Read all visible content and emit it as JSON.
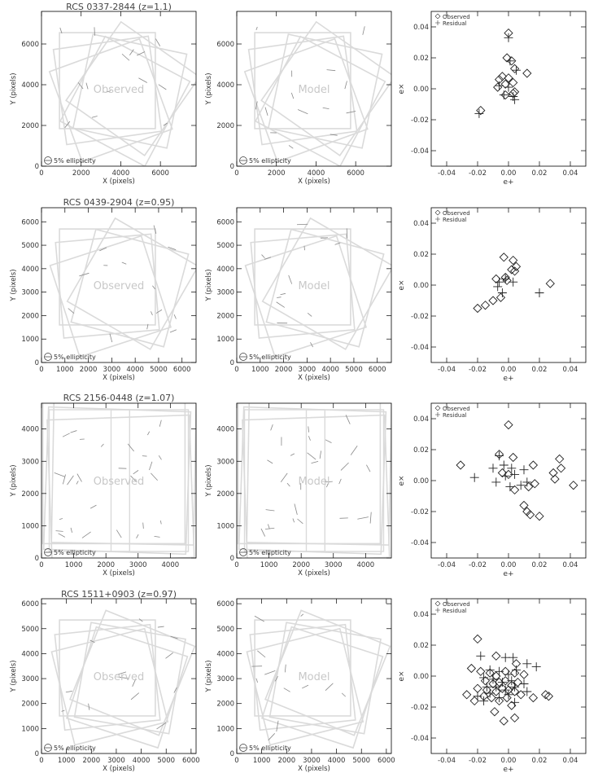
{
  "figure": {
    "panel_label_observed": "Observed",
    "panel_label_model": "Model",
    "ellipticity_key": "5% ellipticity",
    "map_xlabel": "X (pixels)",
    "map_ylabel": "Y (pixels)",
    "scatter_xlabel": "e+",
    "scatter_ylabel": "e×",
    "legend_observed": "Observed",
    "legend_residual": "Residual"
  },
  "chart_data": [
    {
      "type": "scatter",
      "title": "RCS 0337-2844 (z=1.1)",
      "map_xlim": [
        0,
        7800
      ],
      "map_ylim": [
        0,
        7600
      ],
      "map_xticks": [
        0,
        2000,
        4000,
        6000
      ],
      "map_yticks": [
        0,
        2000,
        4000,
        6000
      ],
      "scatter_xlim": [
        -0.05,
        0.05
      ],
      "scatter_ylim": [
        -0.05,
        0.05
      ],
      "scatter_ticks": [
        -0.04,
        -0.02,
        0.0,
        0.02,
        0.04
      ],
      "tick_labels": [
        "-0.04",
        "-0.02",
        "0.00",
        "0.02",
        "0.04"
      ],
      "legend_placement": "top-left",
      "observed": [
        [
          0.0,
          0.036
        ],
        [
          -0.001,
          0.02
        ],
        [
          0.002,
          0.018
        ],
        [
          0.004,
          0.013
        ],
        [
          0.012,
          0.01
        ],
        [
          -0.006,
          0.006
        ],
        [
          -0.004,
          0.008
        ],
        [
          0.003,
          0.004
        ],
        [
          -0.007,
          0.001
        ],
        [
          -0.002,
          0.003
        ],
        [
          0.0,
          0.007
        ],
        [
          0.003,
          -0.003
        ],
        [
          0.004,
          -0.002
        ],
        [
          -0.002,
          -0.004
        ],
        [
          -0.018,
          -0.014
        ]
      ],
      "residual": [
        [
          0.0,
          0.033
        ],
        [
          0.001,
          0.018
        ],
        [
          0.005,
          0.012
        ],
        [
          -0.006,
          0.002
        ],
        [
          0.0,
          0.001
        ],
        [
          0.003,
          -0.005
        ],
        [
          0.004,
          -0.007
        ],
        [
          -0.003,
          -0.004
        ],
        [
          -0.019,
          -0.016
        ]
      ]
    },
    {
      "type": "scatter",
      "title": "RCS 0439-2904 (z=0.95)",
      "map_xlim": [
        0,
        6600
      ],
      "map_ylim": [
        0,
        6600
      ],
      "map_xticks": [
        0,
        1000,
        2000,
        3000,
        4000,
        5000,
        6000
      ],
      "map_yticks": [
        0,
        1000,
        2000,
        3000,
        4000,
        5000,
        6000
      ],
      "scatter_xlim": [
        -0.05,
        0.05
      ],
      "scatter_ylim": [
        -0.05,
        0.05
      ],
      "scatter_ticks": [
        -0.04,
        -0.02,
        0.0,
        0.02,
        0.04
      ],
      "tick_labels": [
        "-0.04",
        "-0.02",
        "0.00",
        "0.02",
        "0.04"
      ],
      "legend_placement": "top-left",
      "observed": [
        [
          -0.003,
          0.018
        ],
        [
          0.003,
          0.016
        ],
        [
          0.002,
          0.01
        ],
        [
          0.005,
          0.012
        ],
        [
          0.004,
          0.009
        ],
        [
          -0.008,
          0.004
        ],
        [
          -0.002,
          0.005
        ],
        [
          -0.001,
          0.003
        ],
        [
          0.027,
          0.001
        ],
        [
          -0.01,
          -0.01
        ],
        [
          -0.005,
          -0.008
        ],
        [
          -0.015,
          -0.013
        ],
        [
          -0.02,
          -0.015
        ]
      ],
      "residual": [
        [
          -0.002,
          0.004
        ],
        [
          -0.006,
          0.002
        ],
        [
          0.003,
          0.002
        ],
        [
          -0.007,
          -0.001
        ],
        [
          -0.004,
          -0.005
        ],
        [
          0.02,
          -0.005
        ]
      ]
    },
    {
      "type": "scatter",
      "title": "RCS 2156-0448 (z=1.07)",
      "map_xlim": [
        0,
        4800
      ],
      "map_ylim": [
        0,
        4800
      ],
      "map_xticks": [
        0,
        1000,
        2000,
        3000,
        4000
      ],
      "map_yticks": [
        0,
        1000,
        2000,
        3000,
        4000
      ],
      "scatter_xlim": [
        -0.05,
        0.05
      ],
      "scatter_ylim": [
        -0.05,
        0.05
      ],
      "scatter_ticks": [
        -0.04,
        -0.02,
        0.0,
        0.02,
        0.04
      ],
      "tick_labels": [
        "-0.04",
        "-0.02",
        "0.00",
        "0.02",
        "0.04"
      ],
      "legend_placement": "top-left",
      "observed": [
        [
          0.0,
          0.036
        ],
        [
          -0.006,
          0.017
        ],
        [
          -0.031,
          0.01
        ],
        [
          0.003,
          0.015
        ],
        [
          0.033,
          0.014
        ],
        [
          0.034,
          0.008
        ],
        [
          0.016,
          0.01
        ],
        [
          0.029,
          0.005
        ],
        [
          -0.004,
          0.005
        ],
        [
          0.0,
          0.004
        ],
        [
          0.03,
          0.001
        ],
        [
          0.017,
          -0.002
        ],
        [
          0.042,
          -0.003
        ],
        [
          0.013,
          -0.004
        ],
        [
          0.004,
          -0.006
        ],
        [
          0.01,
          -0.016
        ],
        [
          0.012,
          -0.02
        ],
        [
          0.014,
          -0.022
        ],
        [
          0.02,
          -0.023
        ]
      ],
      "residual": [
        [
          -0.006,
          0.016
        ],
        [
          -0.003,
          0.01
        ],
        [
          0.002,
          0.008
        ],
        [
          -0.01,
          0.008
        ],
        [
          0.01,
          0.007
        ],
        [
          -0.002,
          0.003
        ],
        [
          0.004,
          0.004
        ],
        [
          -0.022,
          0.002
        ],
        [
          0.012,
          -0.001
        ],
        [
          -0.008,
          -0.001
        ],
        [
          0.008,
          -0.003
        ],
        [
          0.001,
          -0.004
        ]
      ]
    },
    {
      "type": "scatter",
      "title": "RCS 1511+0903 (z=0.97)",
      "map_xlim": [
        0,
        6200
      ],
      "map_ylim": [
        0,
        6200
      ],
      "map_xticks": [
        0,
        1000,
        2000,
        3000,
        4000,
        5000,
        6000
      ],
      "map_yticks": [
        0,
        1000,
        2000,
        3000,
        4000,
        5000,
        6000
      ],
      "scatter_xlim": [
        -0.05,
        0.05
      ],
      "scatter_ylim": [
        -0.05,
        0.05
      ],
      "scatter_ticks": [
        -0.04,
        -0.02,
        0.0,
        0.02,
        0.04
      ],
      "tick_labels": [
        "-0.04",
        "-0.02",
        "0.00",
        "0.02",
        "0.04"
      ],
      "legend_placement": "top-left",
      "observed": [
        [
          -0.02,
          0.024
        ],
        [
          -0.008,
          0.013
        ],
        [
          0.005,
          0.008
        ],
        [
          -0.024,
          0.005
        ],
        [
          -0.018,
          0.003
        ],
        [
          -0.012,
          0.002
        ],
        [
          -0.008,
          0.0
        ],
        [
          -0.002,
          0.003
        ],
        [
          0.004,
          0.002
        ],
        [
          0.01,
          0.001
        ],
        [
          -0.015,
          -0.003
        ],
        [
          -0.01,
          -0.005
        ],
        [
          -0.006,
          -0.004
        ],
        [
          -0.002,
          -0.003
        ],
        [
          0.002,
          -0.006
        ],
        [
          0.006,
          -0.004
        ],
        [
          -0.02,
          -0.008
        ],
        [
          -0.014,
          -0.009
        ],
        [
          -0.008,
          -0.01
        ],
        [
          -0.004,
          -0.008
        ],
        [
          0.0,
          -0.009
        ],
        [
          0.004,
          -0.01
        ],
        [
          0.008,
          -0.012
        ],
        [
          -0.016,
          -0.013
        ],
        [
          -0.011,
          -0.014
        ],
        [
          -0.006,
          -0.016
        ],
        [
          -0.001,
          -0.014
        ],
        [
          0.016,
          -0.014
        ],
        [
          0.024,
          -0.012
        ],
        [
          0.026,
          -0.013
        ],
        [
          -0.022,
          -0.016
        ],
        [
          -0.027,
          -0.012
        ],
        [
          0.002,
          -0.019
        ],
        [
          -0.009,
          -0.023
        ],
        [
          0.004,
          -0.027
        ],
        [
          -0.003,
          -0.029
        ]
      ],
      "residual": [
        [
          -0.018,
          0.013
        ],
        [
          -0.002,
          0.012
        ],
        [
          0.003,
          0.012
        ],
        [
          0.012,
          0.008
        ],
        [
          0.018,
          0.006
        ],
        [
          -0.012,
          0.004
        ],
        [
          -0.006,
          0.003
        ],
        [
          0.0,
          0.001
        ],
        [
          0.005,
          0.004
        ],
        [
          -0.016,
          -0.001
        ],
        [
          -0.01,
          -0.002
        ],
        [
          -0.004,
          -0.004
        ],
        [
          0.002,
          -0.003
        ],
        [
          0.01,
          -0.005
        ],
        [
          -0.014,
          -0.007
        ],
        [
          -0.008,
          -0.007
        ],
        [
          -0.002,
          -0.009
        ],
        [
          0.004,
          -0.007
        ],
        [
          -0.012,
          -0.011
        ],
        [
          0.0,
          -0.012
        ],
        [
          -0.006,
          -0.014
        ],
        [
          0.012,
          -0.01
        ],
        [
          -0.02,
          -0.013
        ],
        [
          -0.016,
          -0.016
        ],
        [
          0.004,
          -0.017
        ]
      ]
    }
  ]
}
